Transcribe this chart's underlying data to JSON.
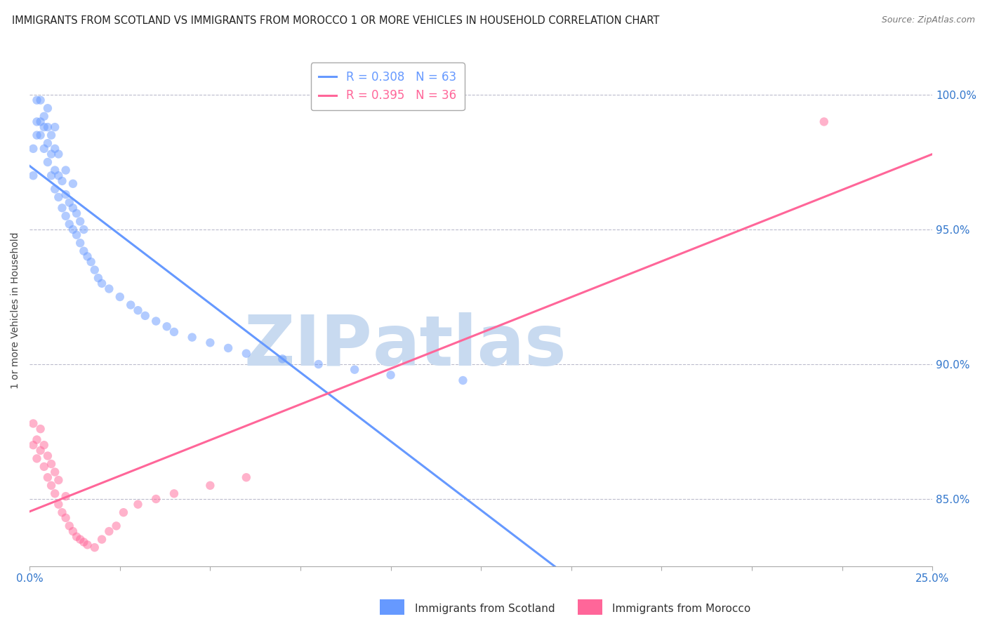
{
  "title": "IMMIGRANTS FROM SCOTLAND VS IMMIGRANTS FROM MOROCCO 1 OR MORE VEHICLES IN HOUSEHOLD CORRELATION CHART",
  "source": "Source: ZipAtlas.com",
  "ylabel_label": "1 or more Vehicles in Household",
  "ytick_labels": [
    "85.0%",
    "90.0%",
    "95.0%",
    "100.0%"
  ],
  "ytick_values": [
    0.85,
    0.9,
    0.95,
    1.0
  ],
  "xmin": 0.0,
  "xmax": 0.25,
  "ymin": 0.825,
  "ymax": 1.015,
  "scotland_color": "#6699ff",
  "morocco_color": "#ff6699",
  "scotland_R": 0.308,
  "scotland_N": 63,
  "morocco_R": 0.395,
  "morocco_N": 36,
  "scotland_x": [
    0.001,
    0.001,
    0.002,
    0.002,
    0.002,
    0.003,
    0.003,
    0.003,
    0.004,
    0.004,
    0.004,
    0.005,
    0.005,
    0.005,
    0.005,
    0.006,
    0.006,
    0.006,
    0.007,
    0.007,
    0.007,
    0.007,
    0.008,
    0.008,
    0.008,
    0.009,
    0.009,
    0.01,
    0.01,
    0.01,
    0.011,
    0.011,
    0.012,
    0.012,
    0.012,
    0.013,
    0.013,
    0.014,
    0.014,
    0.015,
    0.015,
    0.016,
    0.017,
    0.018,
    0.019,
    0.02,
    0.022,
    0.025,
    0.028,
    0.03,
    0.032,
    0.035,
    0.038,
    0.04,
    0.045,
    0.05,
    0.055,
    0.06,
    0.07,
    0.08,
    0.09,
    0.1,
    0.12
  ],
  "scotland_y": [
    0.97,
    0.98,
    0.985,
    0.99,
    0.998,
    0.985,
    0.99,
    0.998,
    0.98,
    0.988,
    0.992,
    0.975,
    0.982,
    0.988,
    0.995,
    0.97,
    0.978,
    0.985,
    0.965,
    0.972,
    0.98,
    0.988,
    0.962,
    0.97,
    0.978,
    0.958,
    0.968,
    0.955,
    0.963,
    0.972,
    0.952,
    0.96,
    0.95,
    0.958,
    0.967,
    0.948,
    0.956,
    0.945,
    0.953,
    0.942,
    0.95,
    0.94,
    0.938,
    0.935,
    0.932,
    0.93,
    0.928,
    0.925,
    0.922,
    0.92,
    0.918,
    0.916,
    0.914,
    0.912,
    0.91,
    0.908,
    0.906,
    0.904,
    0.902,
    0.9,
    0.898,
    0.896,
    0.894
  ],
  "morocco_x": [
    0.001,
    0.001,
    0.002,
    0.002,
    0.003,
    0.003,
    0.004,
    0.004,
    0.005,
    0.005,
    0.006,
    0.006,
    0.007,
    0.007,
    0.008,
    0.008,
    0.009,
    0.01,
    0.01,
    0.011,
    0.012,
    0.013,
    0.014,
    0.015,
    0.016,
    0.018,
    0.02,
    0.022,
    0.024,
    0.026,
    0.03,
    0.035,
    0.04,
    0.05,
    0.06,
    0.22
  ],
  "morocco_y": [
    0.87,
    0.878,
    0.865,
    0.872,
    0.868,
    0.876,
    0.862,
    0.87,
    0.858,
    0.866,
    0.855,
    0.863,
    0.852,
    0.86,
    0.848,
    0.857,
    0.845,
    0.843,
    0.851,
    0.84,
    0.838,
    0.836,
    0.835,
    0.834,
    0.833,
    0.832,
    0.835,
    0.838,
    0.84,
    0.845,
    0.848,
    0.85,
    0.852,
    0.855,
    0.858,
    0.99
  ],
  "watermark_zip": "ZIP",
  "watermark_atlas": "atlas",
  "watermark_color": "#c8daf0",
  "watermark_fontsize": 72
}
